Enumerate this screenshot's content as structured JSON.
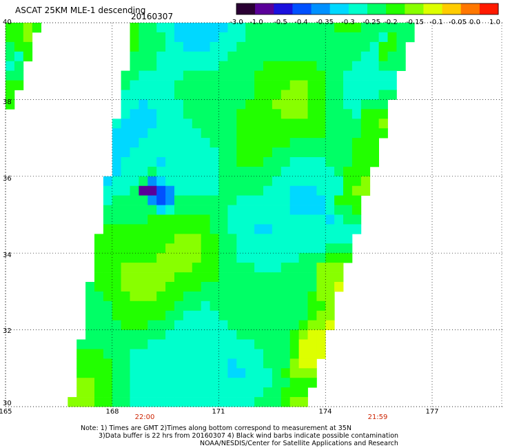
{
  "header": {
    "title": "ASCAT 25KM MLE-1 descending",
    "date": "20160307"
  },
  "colorbar": {
    "tick_labels": [
      "-3.0",
      "-1.0",
      "-0.5",
      "-0.4",
      "-0.35",
      "-0.3",
      "-0.25",
      "-0.2",
      "-0.15",
      "-0.1",
      "-0.05",
      "0.0",
      "1.0"
    ],
    "colors": [
      "#2a0033",
      "#5a0099",
      "#1a10dd",
      "#0050ff",
      "#0090ff",
      "#00d8ff",
      "#00ffcc",
      "#00ff66",
      "#22ff00",
      "#88ff00",
      "#ddff00",
      "#ffcc00",
      "#ff7700",
      "#ff1a00"
    ]
  },
  "map": {
    "lat_labels": [
      "40",
      "38",
      "36",
      "34",
      "32",
      "30"
    ],
    "lon_labels": [
      "165",
      "168",
      "171",
      "174",
      "177"
    ],
    "lat_range": [
      30,
      40
    ],
    "lon_range": [
      165,
      179
    ],
    "gridlines": "dotted"
  },
  "times": {
    "left": "22:00",
    "right": "21:59"
  },
  "notes": {
    "line1": "Note: 1) Times are GMT 2)Times along bottom correspond to measurement at 35N",
    "line2": "3)Data buffer is 22 hrs from 20160307 4) Black wind barbs indicate possible contamination",
    "line3": "NOAA/NESDIS/Center for Satellite Applications and Research"
  },
  "mle_field": {
    "cell_degrees": 0.25,
    "cells": [
      {
        "c": 0,
        "r": 0,
        "v": -0.18
      },
      {
        "c": 1,
        "r": 0,
        "v": -0.2
      },
      {
        "c": 2,
        "r": 0,
        "v": -0.15
      },
      {
        "c": 3,
        "r": 0,
        "v": -0.18
      },
      {
        "c": 0,
        "r": 1,
        "v": -0.2
      },
      {
        "c": 1,
        "r": 1,
        "v": -0.18
      },
      {
        "c": 2,
        "r": 1,
        "v": -0.12
      },
      {
        "c": 0,
        "r": 2,
        "v": -0.22
      },
      {
        "c": 1,
        "r": 2,
        "v": -0.2
      },
      {
        "c": 2,
        "r": 2,
        "v": -0.18
      },
      {
        "c": 0,
        "r": 3,
        "v": -0.25
      },
      {
        "c": 1,
        "r": 3,
        "v": -0.3
      },
      {
        "c": 2,
        "r": 3,
        "v": -0.2
      },
      {
        "c": 0,
        "r": 4,
        "v": -0.3
      },
      {
        "c": 1,
        "r": 4,
        "v": -0.25
      },
      {
        "c": 0,
        "r": 5,
        "v": -0.25
      },
      {
        "c": 1,
        "r": 5,
        "v": -0.22
      },
      {
        "c": 0,
        "r": 6,
        "v": -0.2
      },
      {
        "c": 1,
        "r": 6,
        "v": -0.18
      },
      {
        "c": 0,
        "r": 7,
        "v": -0.2
      },
      {
        "c": 0,
        "r": 8,
        "v": -0.2
      },
      {
        "c": 15,
        "r": 17,
        "v": -1.5
      },
      {
        "c": 16,
        "r": 17,
        "v": -1.5
      },
      {
        "c": 17,
        "r": 17,
        "v": -0.45
      },
      {
        "c": 18,
        "r": 17,
        "v": -0.4
      },
      {
        "c": 16,
        "r": 16,
        "v": -0.38
      },
      {
        "c": 17,
        "r": 16,
        "v": -0.35
      },
      {
        "c": 16,
        "r": 18,
        "v": -0.37
      },
      {
        "c": 17,
        "r": 18,
        "v": -0.45
      },
      {
        "c": 18,
        "r": 18,
        "v": -0.36
      },
      {
        "c": 17,
        "r": 15,
        "v": -0.3
      },
      {
        "c": 16,
        "r": 15,
        "v": -0.22
      },
      {
        "c": 17,
        "r": 14,
        "v": -0.33
      },
      {
        "c": 17,
        "r": 13,
        "v": -0.3
      },
      {
        "c": 17,
        "r": 19,
        "v": -0.32
      },
      {
        "c": 18,
        "r": 19,
        "v": -0.3
      }
    ]
  }
}
